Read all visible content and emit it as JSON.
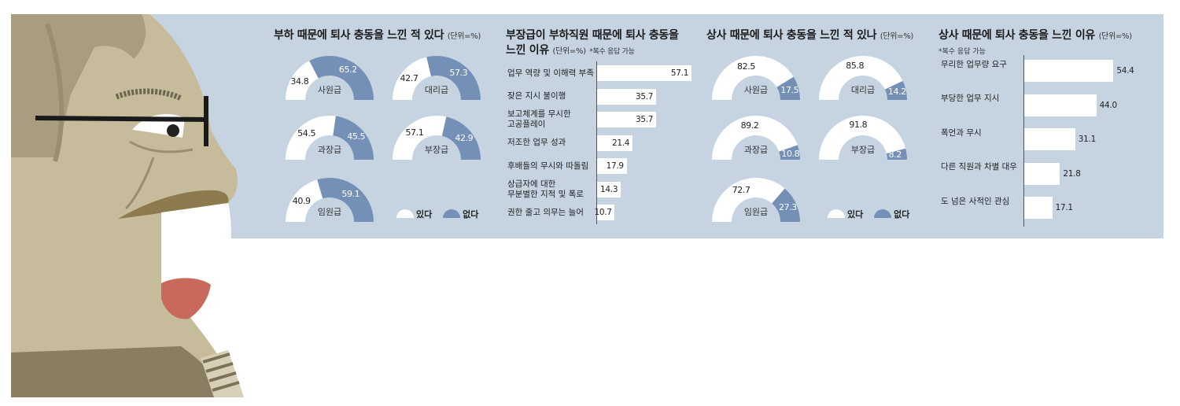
{
  "colors": {
    "panel": "#c6d4e2",
    "yes": "#ffffff",
    "no": "#7490b6"
  },
  "legend": {
    "yes": "있다",
    "no": "없다"
  },
  "chart_data": [
    {
      "type": "pie",
      "title": "부하 때문에 퇴사 충동을 느낀 적 있다",
      "unit": "(단위=%)",
      "series_names": [
        "있다",
        "없다"
      ],
      "items": [
        {
          "category": "사원급",
          "yes": "34.8",
          "no": "65.2"
        },
        {
          "category": "대리급",
          "yes": "42.7",
          "no": "57.3"
        },
        {
          "category": "과장급",
          "yes": "54.5",
          "no": "45.5"
        },
        {
          "category": "부장급",
          "yes": "57.1",
          "no": "42.9"
        },
        {
          "category": "임원급",
          "yes": "40.9",
          "no": "59.1"
        }
      ]
    },
    {
      "type": "bar",
      "title": "부장급이 부하직원 때문에 퇴사 충동을",
      "title2": "느낀 이유",
      "unit": "(단위=%)",
      "note": "*복수 응답 가능",
      "xlim": [
        0,
        60
      ],
      "items": [
        {
          "label": [
            "업무 역량 및 이해력 부족"
          ],
          "value": "57.1"
        },
        {
          "label": [
            "잦은 지시 불이행"
          ],
          "value": "35.7"
        },
        {
          "label": [
            "보고체계를 무시한",
            "고공플레이"
          ],
          "value": "35.7"
        },
        {
          "label": [
            "저조한 업무 성과"
          ],
          "value": "21.4"
        },
        {
          "label": [
            "후배들의 무시와 따돌림"
          ],
          "value": "17.9"
        },
        {
          "label": [
            "상급자에 대한",
            "무분별한 지적 및 폭로"
          ],
          "value": "14.3"
        },
        {
          "label": [
            "권한 줄고 의무는 늘어"
          ],
          "value": "10.7"
        }
      ]
    },
    {
      "type": "pie",
      "title": "상사 때문에 퇴사 충동을 느낀 적 있나",
      "unit": "(단위=%)",
      "series_names": [
        "있다",
        "없다"
      ],
      "items": [
        {
          "category": "사원급",
          "yes": "82.5",
          "no": "17.5"
        },
        {
          "category": "대리급",
          "yes": "85.8",
          "no": "14.2"
        },
        {
          "category": "과장급",
          "yes": "89.2",
          "no": "10.8"
        },
        {
          "category": "부장급",
          "yes": "91.8",
          "no": "8.2"
        },
        {
          "category": "임원급",
          "yes": "72.7",
          "no": "27.3"
        }
      ]
    },
    {
      "type": "bar",
      "title": "상사 때문에 퇴사 충동을 느낀 이유",
      "unit": "(단위=%)",
      "note": "*복수 응답 가능",
      "xlim": [
        0,
        60
      ],
      "items": [
        {
          "label": [
            "무리한 업무량 요구"
          ],
          "value": "54.4"
        },
        {
          "label": [
            "부당한 업무 지시"
          ],
          "value": "44.0"
        },
        {
          "label": [
            "폭언과 무시"
          ],
          "value": "31.1"
        },
        {
          "label": [
            "다른 직원과 차별 대우"
          ],
          "value": "21.8"
        },
        {
          "label": [
            "도 넘은 사적인 관심"
          ],
          "value": "17.1"
        }
      ]
    }
  ]
}
